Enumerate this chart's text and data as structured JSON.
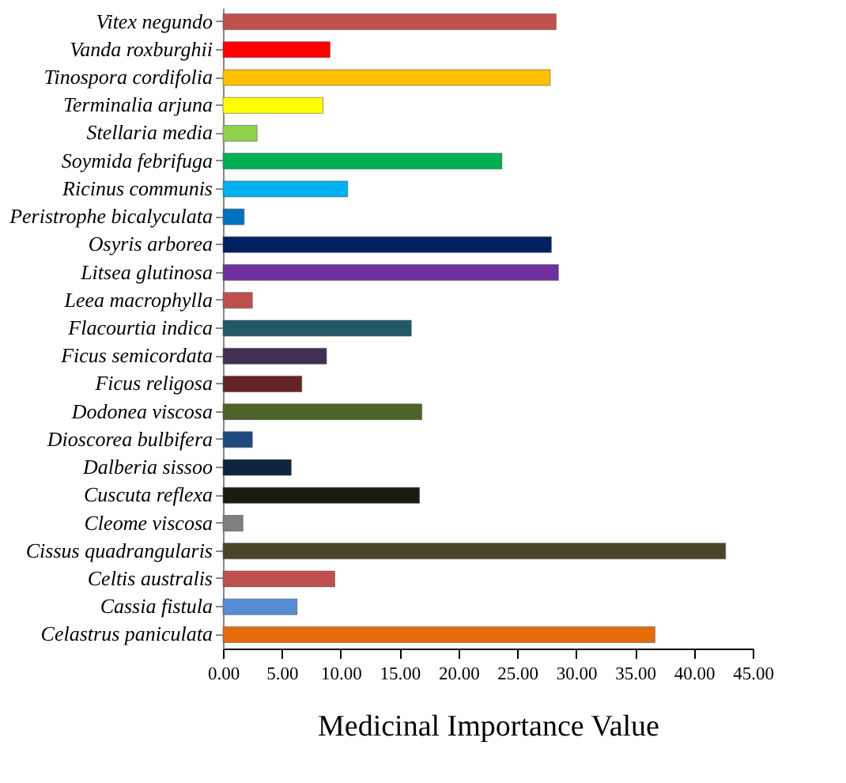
{
  "chart_data": {
    "type": "bar",
    "orientation": "horizontal",
    "xlabel": "Medicinal Importance Value",
    "categories": [
      "Vitex negundo",
      "Vanda roxburghii",
      "Tinospora cordifolia",
      "Terminalia arjuna",
      "Stellaria media",
      "Soymida febrifuga",
      "Ricinus communis",
      "Peristrophe bicalyculata",
      "Osyris arborea",
      "Litsea glutinosa",
      "Leea macrophylla",
      "Flacourtia indica",
      "Ficus semicordata",
      "Ficus religosa",
      "Dodonea viscosa",
      "Dioscorea bulbifera",
      "Dalberia sissoo",
      "Cuscuta reflexa",
      "Cleome viscosa",
      "Cissus quadrangularis",
      "Celtis australis",
      "Cassia fistula",
      "Celastrus paniculata"
    ],
    "values": [
      28.3,
      9.1,
      27.8,
      8.5,
      2.9,
      23.7,
      10.6,
      1.8,
      27.9,
      28.5,
      2.5,
      16.0,
      8.8,
      6.7,
      16.9,
      2.5,
      5.8,
      16.7,
      1.7,
      42.7,
      9.5,
      6.3,
      36.7
    ],
    "colors": [
      "#c0504d",
      "#ff0000",
      "#ffc000",
      "#ffff00",
      "#92d050",
      "#00b050",
      "#00b0f0",
      "#0070c0",
      "#002060",
      "#7030a0",
      "#c0504d",
      "#215968",
      "#403152",
      "#632523",
      "#4f6228",
      "#1f497d",
      "#0f243e",
      "#1d1b10",
      "#7f7f7f",
      "#4a452a",
      "#c0504d",
      "#558ed5",
      "#e36c09"
    ],
    "xlim": [
      0,
      45
    ],
    "xticks": [
      {
        "value": 0,
        "label": "0.00"
      },
      {
        "value": 5,
        "label": "5.00"
      },
      {
        "value": 10,
        "label": "10.00"
      },
      {
        "value": 15,
        "label": "15.00"
      },
      {
        "value": 20,
        "label": "20.00"
      },
      {
        "value": 25,
        "label": "25.00"
      },
      {
        "value": 30,
        "label": "30.00"
      },
      {
        "value": 35,
        "label": "35.00"
      },
      {
        "value": 40,
        "label": "40.00"
      },
      {
        "value": 45,
        "label": "45.00"
      }
    ],
    "grid": false
  }
}
